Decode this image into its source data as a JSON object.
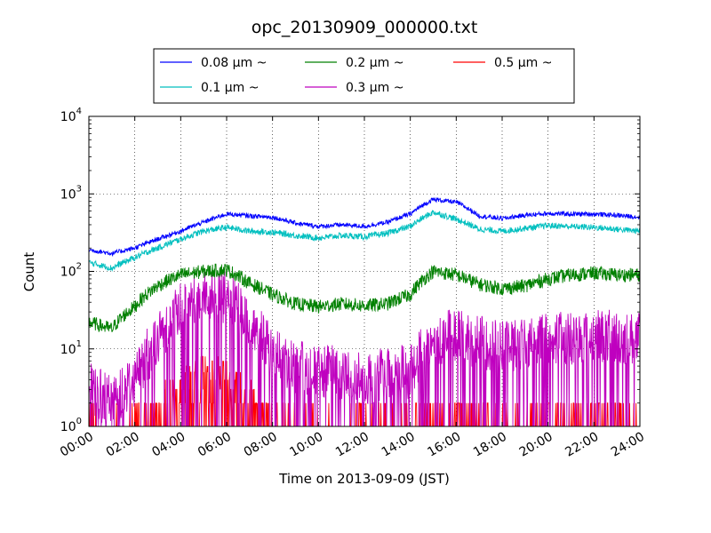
{
  "chart_data": {
    "type": "line",
    "title": "opc_20130909_000000.txt",
    "xlabel": "Time on 2013-09-09 (JST)",
    "ylabel": "Count",
    "yscale": "log",
    "ylim": [
      1,
      10000
    ],
    "xlim": [
      "00:00",
      "24:00"
    ],
    "x_ticks": [
      "00:00",
      "02:00",
      "04:00",
      "06:00",
      "08:00",
      "10:00",
      "12:00",
      "14:00",
      "16:00",
      "18:00",
      "20:00",
      "22:00",
      "24:00"
    ],
    "y_ticks": [
      {
        "value": 1,
        "base": "10",
        "exp": "0"
      },
      {
        "value": 10,
        "base": "10",
        "exp": "1"
      },
      {
        "value": 100,
        "base": "10",
        "exp": "2"
      },
      {
        "value": 1000,
        "base": "10",
        "exp": "3"
      },
      {
        "value": 10000,
        "base": "10",
        "exp": "4"
      }
    ],
    "grid": true,
    "legend_position": "top-center",
    "x_hours": [
      0,
      1,
      2,
      3,
      4,
      5,
      6,
      7,
      8,
      9,
      10,
      11,
      12,
      13,
      14,
      15,
      16,
      17,
      18,
      19,
      20,
      21,
      22,
      23,
      24
    ],
    "series": [
      {
        "name": "0.08 μm ~",
        "color": "#0000ff",
        "values": [
          190,
          170,
          200,
          260,
          330,
          430,
          550,
          520,
          500,
          420,
          380,
          400,
          380,
          430,
          550,
          850,
          780,
          520,
          480,
          530,
          560,
          550,
          550,
          530,
          500
        ]
      },
      {
        "name": "0.1 μm ~",
        "color": "#00bfbf",
        "values": [
          130,
          110,
          150,
          200,
          260,
          330,
          370,
          330,
          320,
          290,
          270,
          290,
          280,
          310,
          380,
          580,
          470,
          350,
          330,
          360,
          390,
          380,
          370,
          350,
          330
        ]
      },
      {
        "name": "0.2 μm ~",
        "color": "#008000",
        "values": [
          22,
          18,
          35,
          65,
          90,
          100,
          105,
          70,
          50,
          38,
          35,
          38,
          36,
          38,
          50,
          100,
          90,
          68,
          60,
          65,
          80,
          90,
          95,
          90,
          90
        ]
      },
      {
        "name": "0.3 μm ~",
        "color": "#bf00bf",
        "values": [
          3,
          2,
          4,
          12,
          35,
          50,
          45,
          20,
          8,
          6,
          5,
          5,
          4,
          5,
          5,
          14,
          15,
          12,
          11,
          12,
          14,
          14,
          15,
          14,
          13
        ]
      },
      {
        "name": "0.5 μm ~",
        "color": "#ff0000",
        "values": [
          1,
          1,
          1,
          1.5,
          3,
          5,
          4,
          2,
          1.4,
          1.2,
          1.1,
          1.1,
          1,
          1.1,
          1.1,
          1.4,
          1.4,
          1.3,
          1.2,
          1.2,
          1.3,
          1.3,
          1.3,
          1.3,
          1.3
        ]
      }
    ]
  }
}
